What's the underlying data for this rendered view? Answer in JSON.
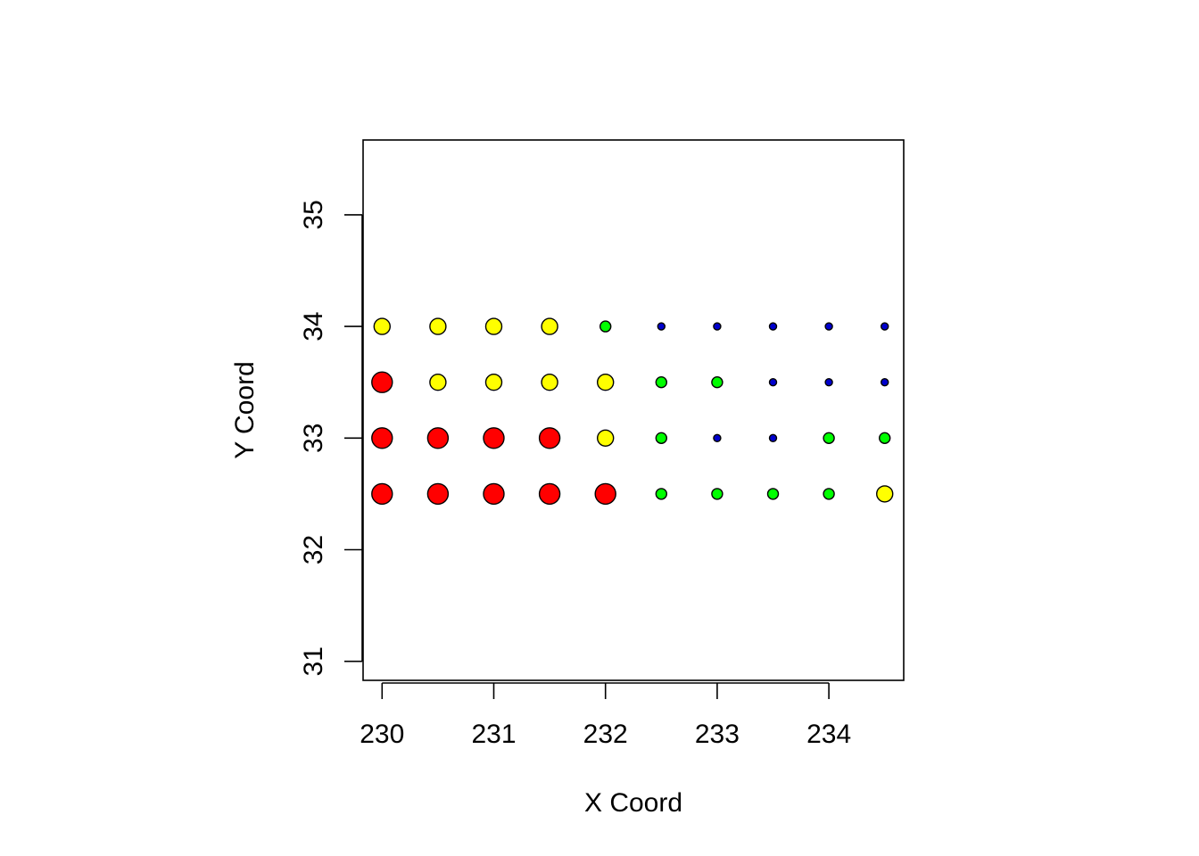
{
  "chart_data": {
    "type": "scatter",
    "title": "",
    "xlabel": "X Coord",
    "ylabel": "Y Coord",
    "xlim": [
      229.83,
      234.67
    ],
    "ylim": [
      30.83,
      35.67
    ],
    "x_ticks": [
      230,
      231,
      232,
      233,
      234
    ],
    "x_tick_labels": [
      "230",
      "231",
      "232",
      "233",
      "234"
    ],
    "y_ticks": [
      31,
      32,
      33,
      34,
      35
    ],
    "y_tick_labels": [
      "31",
      "32",
      "33",
      "34",
      "35"
    ],
    "grid": false,
    "legend": "none",
    "point_classes": {
      "red": {
        "color": "#ff0000",
        "size": 4
      },
      "yellow": {
        "color": "#ffff00",
        "size": 3
      },
      "green": {
        "color": "#00ff00",
        "size": 2
      },
      "blue": {
        "color": "#0000cd",
        "size": 1
      }
    },
    "points": [
      {
        "x": 230.0,
        "y": 34.0,
        "class": "yellow"
      },
      {
        "x": 230.5,
        "y": 34.0,
        "class": "yellow"
      },
      {
        "x": 231.0,
        "y": 34.0,
        "class": "yellow"
      },
      {
        "x": 231.5,
        "y": 34.0,
        "class": "yellow"
      },
      {
        "x": 232.0,
        "y": 34.0,
        "class": "green"
      },
      {
        "x": 232.5,
        "y": 34.0,
        "class": "blue"
      },
      {
        "x": 233.0,
        "y": 34.0,
        "class": "blue"
      },
      {
        "x": 233.5,
        "y": 34.0,
        "class": "blue"
      },
      {
        "x": 234.0,
        "y": 34.0,
        "class": "blue"
      },
      {
        "x": 234.5,
        "y": 34.0,
        "class": "blue"
      },
      {
        "x": 230.0,
        "y": 33.5,
        "class": "red"
      },
      {
        "x": 230.5,
        "y": 33.5,
        "class": "yellow"
      },
      {
        "x": 231.0,
        "y": 33.5,
        "class": "yellow"
      },
      {
        "x": 231.5,
        "y": 33.5,
        "class": "yellow"
      },
      {
        "x": 232.0,
        "y": 33.5,
        "class": "yellow"
      },
      {
        "x": 232.5,
        "y": 33.5,
        "class": "green"
      },
      {
        "x": 233.0,
        "y": 33.5,
        "class": "green"
      },
      {
        "x": 233.5,
        "y": 33.5,
        "class": "blue"
      },
      {
        "x": 234.0,
        "y": 33.5,
        "class": "blue"
      },
      {
        "x": 234.5,
        "y": 33.5,
        "class": "blue"
      },
      {
        "x": 230.0,
        "y": 33.0,
        "class": "red"
      },
      {
        "x": 230.5,
        "y": 33.0,
        "class": "red"
      },
      {
        "x": 231.0,
        "y": 33.0,
        "class": "red"
      },
      {
        "x": 231.5,
        "y": 33.0,
        "class": "red"
      },
      {
        "x": 232.0,
        "y": 33.0,
        "class": "yellow"
      },
      {
        "x": 232.5,
        "y": 33.0,
        "class": "green"
      },
      {
        "x": 233.0,
        "y": 33.0,
        "class": "blue"
      },
      {
        "x": 233.5,
        "y": 33.0,
        "class": "blue"
      },
      {
        "x": 234.0,
        "y": 33.0,
        "class": "green"
      },
      {
        "x": 234.5,
        "y": 33.0,
        "class": "green"
      },
      {
        "x": 230.0,
        "y": 32.5,
        "class": "red"
      },
      {
        "x": 230.5,
        "y": 32.5,
        "class": "red"
      },
      {
        "x": 231.0,
        "y": 32.5,
        "class": "red"
      },
      {
        "x": 231.5,
        "y": 32.5,
        "class": "red"
      },
      {
        "x": 232.0,
        "y": 32.5,
        "class": "red"
      },
      {
        "x": 232.5,
        "y": 32.5,
        "class": "green"
      },
      {
        "x": 233.0,
        "y": 32.5,
        "class": "green"
      },
      {
        "x": 233.5,
        "y": 32.5,
        "class": "green"
      },
      {
        "x": 234.0,
        "y": 32.5,
        "class": "green"
      },
      {
        "x": 234.5,
        "y": 32.5,
        "class": "yellow"
      }
    ]
  }
}
